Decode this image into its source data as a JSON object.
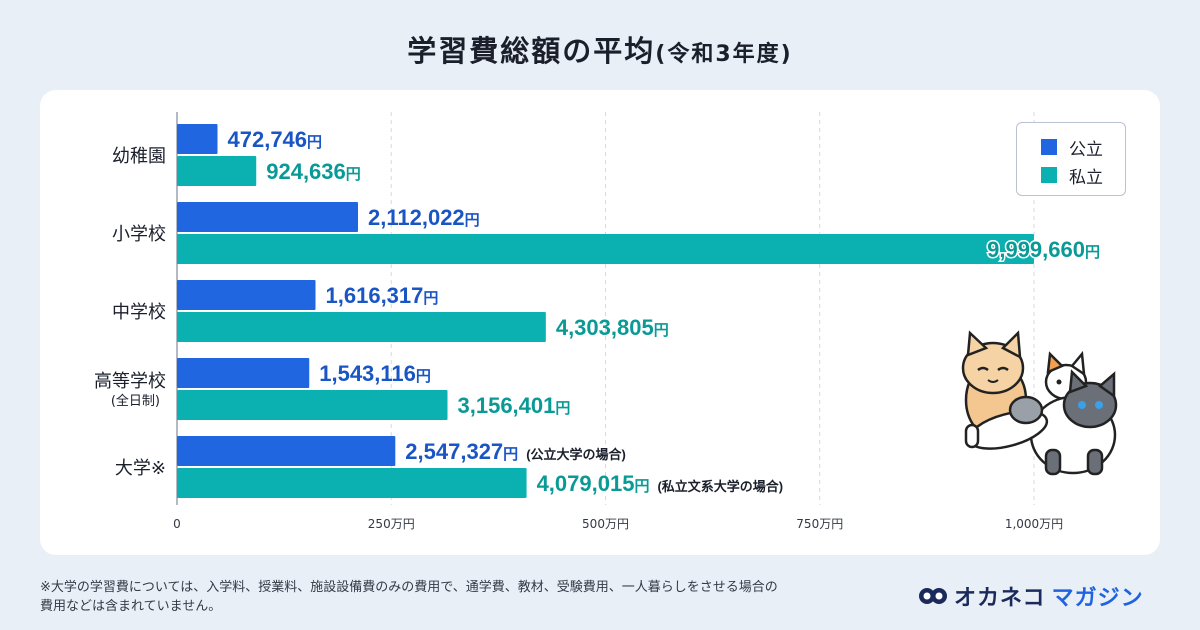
{
  "title": {
    "main": "学習費総額の平均",
    "sub": "(令和3年度)"
  },
  "legend": {
    "public": "公立",
    "private": "私立"
  },
  "colors": {
    "public": "#1f66e0",
    "private": "#0bb0b0",
    "public_label": "#1a55c4",
    "private_label": "#0a9a96",
    "grid": "#d3d9e2"
  },
  "chart_data": {
    "type": "bar",
    "orientation": "horizontal",
    "title": "学習費総額の平均(令和3年度)",
    "xlabel": "",
    "ylabel": "",
    "xlim": [
      0,
      10000000
    ],
    "x_ticks": [
      {
        "value": 0,
        "label": "0"
      },
      {
        "value": 2500000,
        "label": "250万円"
      },
      {
        "value": 5000000,
        "label": "500万円"
      },
      {
        "value": 7500000,
        "label": "750万円"
      },
      {
        "value": 10000000,
        "label": "1,000万円"
      }
    ],
    "unit": "円",
    "categories": [
      {
        "label": "幼稚園",
        "sublabel": ""
      },
      {
        "label": "小学校",
        "sublabel": ""
      },
      {
        "label": "中学校",
        "sublabel": ""
      },
      {
        "label": "高等学校",
        "sublabel": "(全日制)"
      },
      {
        "label": "大学※",
        "sublabel": ""
      }
    ],
    "series": [
      {
        "name": "公立",
        "values": [
          472746,
          2112022,
          1616317,
          1543116,
          2547327
        ],
        "value_labels": [
          "472,746",
          "2,112,022",
          "1,616,317",
          "1,543,116",
          "2,547,327"
        ],
        "notes": [
          "",
          "",
          "",
          "",
          "(公立大学の場合)"
        ]
      },
      {
        "name": "私立",
        "values": [
          924636,
          9999660,
          4303805,
          3156401,
          4079015
        ],
        "value_labels": [
          "924,636",
          "9,999,660",
          "4,303,805",
          "3,156,401",
          "4,079,015"
        ],
        "notes": [
          "",
          "",
          "",
          "",
          "(私立文系大学の場合)"
        ]
      }
    ]
  },
  "footnote": {
    "line1": "※大学の学習費については、入学料、授業料、施設設備費のみの費用で、通学費、教材、受験費用、一人暮らしをさせる場合の",
    "line2": "費用などは含まれていません。"
  },
  "brand": {
    "part1": "オカネコ",
    "part2": "マガジン"
  }
}
